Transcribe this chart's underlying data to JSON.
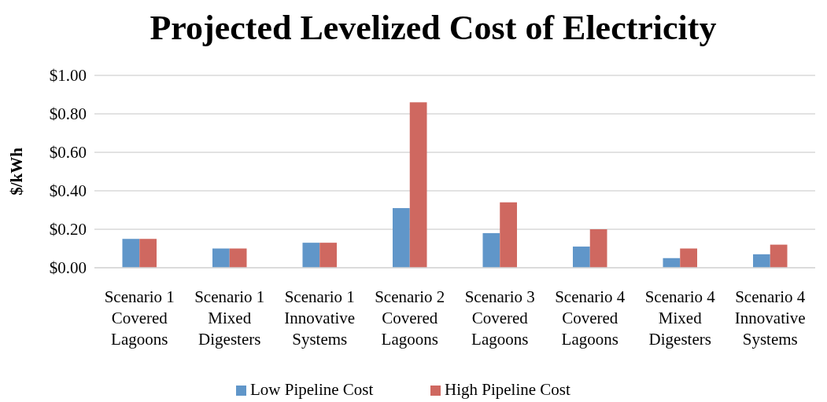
{
  "chart_data": {
    "type": "bar",
    "title": "Projected Levelized Cost of Electricity",
    "ylabel": "$/kWh",
    "categories": [
      "Scenario 1\nCovered\nLagoons",
      "Scenario 1\nMixed\nDigesters",
      "Scenario 1\nInnovative\nSystems",
      "Scenario 2\nCovered\nLagoons",
      "Scenario 3\nCovered\nLagoons",
      "Scenario 4\nCovered\nLagoons",
      "Scenario 4\nMixed\nDigesters",
      "Scenario 4\nInnovative\nSystems"
    ],
    "series": [
      {
        "name": "Low Pipeline Cost",
        "color": "#6096c9",
        "values": [
          0.15,
          0.1,
          0.13,
          0.31,
          0.18,
          0.11,
          0.05,
          0.07
        ]
      },
      {
        "name": "High Pipeline Cost",
        "color": "#cf6860",
        "values": [
          0.15,
          0.1,
          0.13,
          0.86,
          0.34,
          0.2,
          0.1,
          0.12
        ]
      }
    ],
    "ylim": [
      0,
      1
    ],
    "yticks": [
      {
        "value": 0,
        "label": "$0.00"
      },
      {
        "value": 0.2,
        "label": "$0.20"
      },
      {
        "value": 0.4,
        "label": "$0.40"
      },
      {
        "value": 0.6,
        "label": "$0.60"
      },
      {
        "value": 0.8,
        "label": "$0.80"
      },
      {
        "value": 1,
        "label": "$1.00"
      }
    ],
    "grid": "y",
    "legend": "bottom"
  }
}
